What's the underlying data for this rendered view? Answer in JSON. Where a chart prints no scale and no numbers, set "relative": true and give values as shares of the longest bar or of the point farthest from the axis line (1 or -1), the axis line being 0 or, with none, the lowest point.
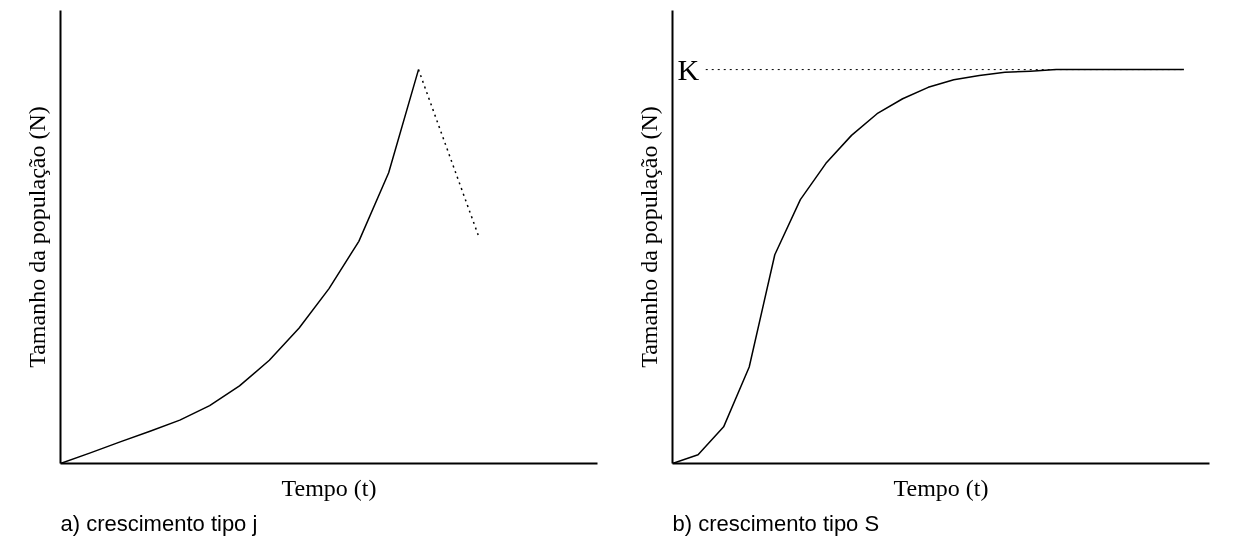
{
  "chart_data": [
    {
      "type": "line",
      "relative": true,
      "title": "a) crescimento tipo j",
      "xlabel": "Tempo (t)",
      "ylabel": "Tamanho da população (N)",
      "tick_labels": false,
      "grid": false,
      "categories": [
        null,
        null,
        null,
        null,
        null,
        null,
        null,
        null,
        null,
        null,
        null,
        null,
        null,
        null,
        null,
        null,
        null,
        null,
        null
      ],
      "series": [
        {
          "color": "#000000",
          "line_style": "solid",
          "values": [
            0,
            0.027,
            0.055,
            0.082,
            0.11,
            0.147,
            0.197,
            0.262,
            0.344,
            0.444,
            0.564,
            0.738,
            1,
            null,
            null,
            null,
            null,
            null,
            null
          ]
        },
        {
          "color": "#000000",
          "line_style": "dotted",
          "values": [
            null,
            null,
            null,
            null,
            null,
            null,
            null,
            null,
            null,
            null,
            null,
            null,
            1,
            0.79,
            0.58,
            null,
            null,
            null,
            null
          ]
        }
      ]
    },
    {
      "type": "line",
      "relative": true,
      "title": "b) crescimento tipo S",
      "xlabel": "Tempo (t)",
      "ylabel": "Tamanho da população (N)",
      "tick_labels": false,
      "grid": false,
      "categories": [
        null,
        null,
        null,
        null,
        null,
        null,
        null,
        null,
        null,
        null,
        null,
        null,
        null,
        null,
        null,
        null,
        null,
        null,
        null,
        null,
        null,
        null
      ],
      "series": [
        {
          "color": "#000000",
          "line_style": "solid",
          "values": [
            0,
            0.022,
            0.093,
            0.245,
            0.53,
            0.67,
            0.762,
            0.833,
            0.888,
            0.926,
            0.955,
            0.974,
            0.985,
            0.993,
            0.996,
            1,
            1,
            1,
            1,
            1,
            1,
            null
          ]
        }
      ],
      "ref_lines": [
        {
          "axis": "y",
          "value": 1,
          "label": "K",
          "color": "#000000",
          "line_style": "dotted"
        }
      ]
    }
  ]
}
